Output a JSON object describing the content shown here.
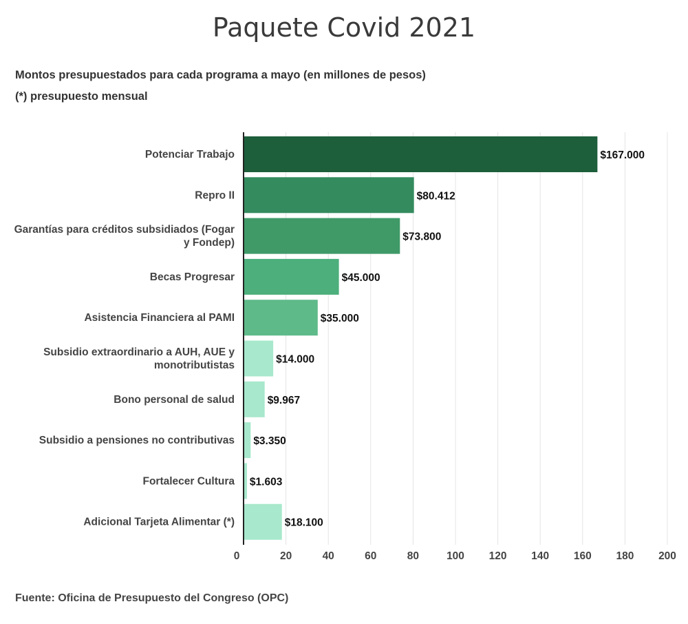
{
  "title": "Paquete Covid 2021",
  "subtitle": "Montos presupuestados para cada programa a mayo (en millones de pesos)",
  "note": "(*) presupuesto mensual",
  "source": "Fuente: Oficina de Presupuesto del Congreso (OPC)",
  "chart_data": {
    "type": "bar",
    "orientation": "horizontal",
    "categories": [
      "Potenciar Trabajo",
      "Repro II",
      "Garantías para créditos subsidiados (Fogar y Fondep)",
      "Becas Progresar",
      "Asistencia Financiera al PAMI",
      "Subsidio extraordinario a AUH, AUE y monotributistas",
      "Bono personal de salud",
      "Subsidio a pensiones no contributivas",
      "Fortalecer Cultura",
      "Adicional Tarjeta Alimentar (*)"
    ],
    "category_lines": [
      [
        "Potenciar Trabajo"
      ],
      [
        "Repro II"
      ],
      [
        "Garantías para créditos subsidiados (Fogar",
        "y Fondep)"
      ],
      [
        "Becas Progresar"
      ],
      [
        "Asistencia Financiera al PAMI"
      ],
      [
        "Subsidio extraordinario a AUH, AUE y",
        "monotributistas"
      ],
      [
        "Bono personal de salud"
      ],
      [
        "Subsidio a pensiones no contributivas"
      ],
      [
        "Fortalecer Cultura"
      ],
      [
        "Adicional Tarjeta Alimentar (*)"
      ]
    ],
    "values": [
      167000,
      80412,
      73800,
      45000,
      35000,
      14000,
      9967,
      3350,
      1603,
      18100
    ],
    "value_labels": [
      "$167.000",
      "$80.412",
      "$73.800",
      "$45.000",
      "$35.000",
      "$14.000",
      "$9.967",
      "$3.350",
      "$1.603",
      "$18.100"
    ],
    "bar_colors": [
      "#1d5e3b",
      "#348b5e",
      "#3f9a68",
      "#4caf7c",
      "#5fba8a",
      "#a8e8cc",
      "#a8e8cc",
      "#a8e8cc",
      "#a8e8cc",
      "#a8e8cc"
    ],
    "xticks": [
      0,
      20,
      40,
      60,
      80,
      100,
      120,
      140,
      160,
      180,
      200
    ],
    "xlim": [
      0,
      200
    ],
    "x_tick_scale": 1000,
    "grid": true,
    "xlabel": "",
    "ylabel": ""
  }
}
